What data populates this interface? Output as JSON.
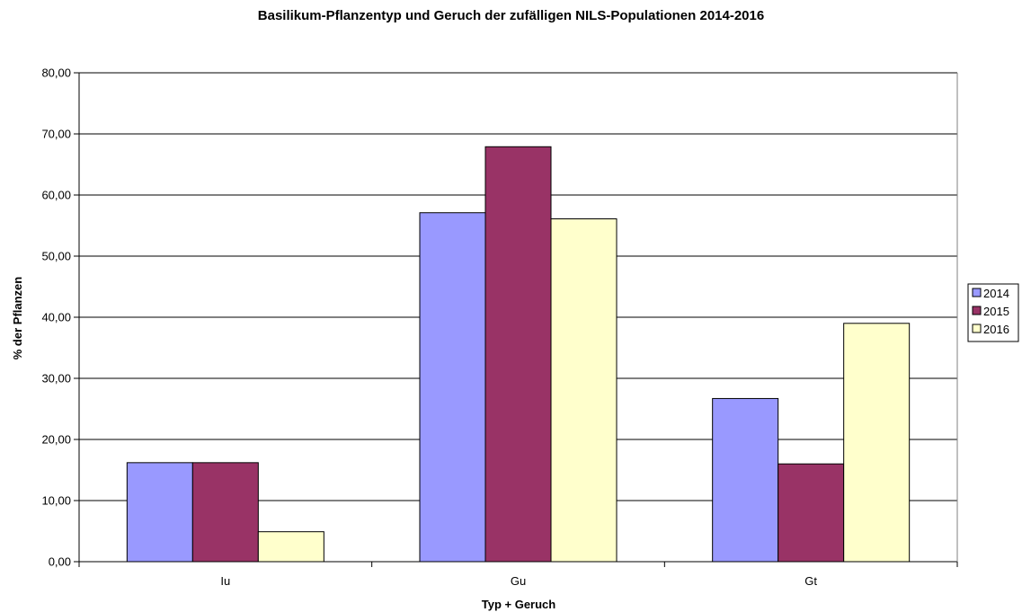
{
  "chart_data": {
    "type": "bar",
    "title": "Basilikum-Pflanzentyp und Geruch der zufälligen NILS-Populationen 2014-2016",
    "xlabel": "Typ + Geruch",
    "ylabel": "% der Pflanzen",
    "categories": [
      "Iu",
      "Gu",
      "Gt"
    ],
    "series": [
      {
        "name": "2014",
        "values": [
          16.2,
          57.1,
          26.7
        ],
        "color": "#9999ff"
      },
      {
        "name": "2015",
        "values": [
          16.2,
          67.9,
          16.0
        ],
        "color": "#993366"
      },
      {
        "name": "2016",
        "values": [
          4.9,
          56.1,
          39.0
        ],
        "color": "#ffffcc"
      }
    ],
    "ylim": [
      0,
      80
    ],
    "yticks": [
      "0,00",
      "10,00",
      "20,00",
      "30,00",
      "40,00",
      "50,00",
      "60,00",
      "70,00",
      "80,00"
    ],
    "grid": true,
    "legend_position": "right"
  }
}
